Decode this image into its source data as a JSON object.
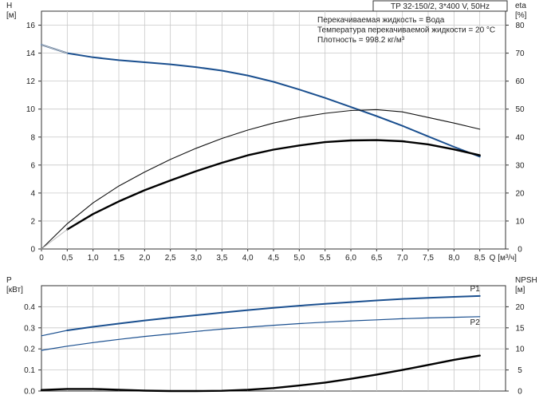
{
  "chart_data": [
    {
      "type": "line",
      "panel": "upper",
      "header_box": "TP 32-150/2, 3*400 V, 50Hz",
      "info_lines": [
        "Перекачиваемая жидкость = Вода",
        "Температура перекачиваемой жидкости = 20 °C",
        "Плотность = 998.2 кг/м³"
      ],
      "xlabel": "Q [м³/ч]",
      "xlim": [
        0,
        9
      ],
      "x_ticks": [
        0,
        0.5,
        1.0,
        1.5,
        2.0,
        2.5,
        3.0,
        3.5,
        4.0,
        4.5,
        5.0,
        5.5,
        6.0,
        6.5,
        7.0,
        7.5,
        8.0,
        8.5
      ],
      "x_tick_labels": [
        "0",
        "0,5",
        "1,0",
        "1,5",
        "2,0",
        "2,5",
        "3,0",
        "3,5",
        "4,0",
        "4,5",
        "5,0",
        "5,5",
        "6,0",
        "6,5",
        "7,0",
        "7,5",
        "8,0",
        "8,5"
      ],
      "y_left": {
        "label_line1": "H",
        "label_line2": "[м]",
        "lim": [
          0,
          17
        ],
        "ticks": [
          0,
          2,
          4,
          6,
          8,
          10,
          12,
          14,
          16
        ]
      },
      "y_right": {
        "label_line1": "eta",
        "label_line2": "[%]",
        "lim": [
          0,
          85
        ],
        "ticks": [
          0,
          10,
          20,
          30,
          40,
          50,
          60,
          70,
          80
        ]
      },
      "grid": true,
      "series": [
        {
          "axis": "left",
          "color": "#1a4f8f",
          "width": 2.0,
          "x": [
            0,
            0.5,
            1.0,
            1.5,
            2.0,
            2.5,
            3.0,
            3.5,
            4.0,
            4.5,
            5.0,
            5.5,
            6.0,
            6.5,
            7.0,
            7.5,
            8.0,
            8.5
          ],
          "y": [
            14.6,
            14.0,
            13.7,
            13.5,
            13.35,
            13.2,
            13.0,
            12.75,
            12.4,
            11.95,
            11.4,
            10.8,
            10.15,
            9.5,
            8.8,
            8.05,
            7.3,
            6.6
          ]
        },
        {
          "axis": "left",
          "color": "#bbbbbb",
          "width": 1.2,
          "style": "faint",
          "x": [
            0,
            0.5
          ],
          "y": [
            14.6,
            14.0
          ]
        },
        {
          "axis": "right",
          "color": "#111111",
          "width": 1.1,
          "x": [
            0,
            0.5,
            1.0,
            1.5,
            2.0,
            2.5,
            3.0,
            3.5,
            4.0,
            4.5,
            5.0,
            5.5,
            6.0,
            6.5,
            7.0,
            7.5,
            8.0,
            8.5
          ],
          "y": [
            0,
            9,
            16.5,
            22.5,
            27.5,
            32,
            36,
            39.5,
            42.5,
            45,
            47,
            48.5,
            49.5,
            49.8,
            49,
            47,
            45,
            42.8
          ]
        },
        {
          "axis": "right",
          "color": "#000000",
          "width": 2.4,
          "x": [
            0.5,
            1.0,
            1.5,
            2.0,
            2.5,
            3.0,
            3.5,
            4.0,
            4.5,
            5.0,
            5.5,
            6.0,
            6.5,
            7.0,
            7.5,
            8.0,
            8.5
          ],
          "y": [
            7,
            12.5,
            17,
            21,
            24.5,
            27.8,
            30.8,
            33.5,
            35.5,
            37,
            38.2,
            38.8,
            38.9,
            38.5,
            37.4,
            35.6,
            33.5
          ]
        },
        {
          "axis": "right",
          "color": "#bbbbbb",
          "width": 1.0,
          "style": "faint",
          "x": [
            0,
            0.5
          ],
          "y": [
            0,
            7
          ]
        }
      ]
    },
    {
      "type": "line",
      "panel": "lower",
      "xlim": [
        0,
        9
      ],
      "y_left": {
        "label_line1": "P",
        "label_line2": "[кВт]",
        "lim": [
          0,
          0.5
        ],
        "ticks": [
          0.0,
          0.1,
          0.2,
          0.3,
          0.4
        ],
        "tick_labels": [
          "0.0",
          "0.1",
          "0.2",
          "0.3",
          "0.4"
        ]
      },
      "y_right": {
        "label_line1": "NPSH",
        "label_line2": "[м]",
        "lim": [
          0,
          25
        ],
        "ticks": [
          0,
          5,
          10,
          15,
          20
        ]
      },
      "grid": true,
      "series": [
        {
          "name": "P1",
          "axis": "left",
          "color": "#1a4f8f",
          "width": 2.0,
          "x": [
            0.5,
            1.0,
            1.5,
            2.0,
            2.5,
            3.0,
            3.5,
            4.0,
            4.5,
            5.0,
            5.5,
            6.0,
            6.5,
            7.0,
            7.5,
            8.0,
            8.5
          ],
          "y": [
            0.288,
            0.305,
            0.32,
            0.335,
            0.348,
            0.36,
            0.372,
            0.384,
            0.395,
            0.405,
            0.414,
            0.422,
            0.43,
            0.437,
            0.442,
            0.447,
            0.451
          ]
        },
        {
          "axis": "left",
          "color": "#1a4f8f",
          "width": 1.2,
          "x": [
            0,
            0.5
          ],
          "y": [
            0.262,
            0.288
          ]
        },
        {
          "name": "P2",
          "axis": "left",
          "color": "#1a4f8f",
          "width": 1.2,
          "x": [
            0,
            0.5,
            1.0,
            1.5,
            2.0,
            2.5,
            3.0,
            3.5,
            4.0,
            4.5,
            5.0,
            5.5,
            6.0,
            6.5,
            7.0,
            7.5,
            8.0,
            8.5
          ],
          "y": [
            0.193,
            0.213,
            0.23,
            0.245,
            0.259,
            0.271,
            0.283,
            0.294,
            0.303,
            0.312,
            0.32,
            0.327,
            0.333,
            0.338,
            0.343,
            0.347,
            0.35,
            0.353
          ]
        },
        {
          "axis": "right",
          "color": "#000000",
          "width": 2.4,
          "x": [
            0,
            0.5,
            1.0,
            1.5,
            2.0,
            2.5,
            3.0,
            3.5,
            4.0,
            4.5,
            5.0,
            5.5,
            6.0,
            6.5,
            7.0,
            7.5,
            8.0,
            8.5
          ],
          "y": [
            0.25,
            0.5,
            0.5,
            0.3,
            0.1,
            0.0,
            0.0,
            0.05,
            0.3,
            0.7,
            1.3,
            2.0,
            2.9,
            3.9,
            5.0,
            6.2,
            7.4,
            8.4
          ]
        }
      ]
    }
  ]
}
